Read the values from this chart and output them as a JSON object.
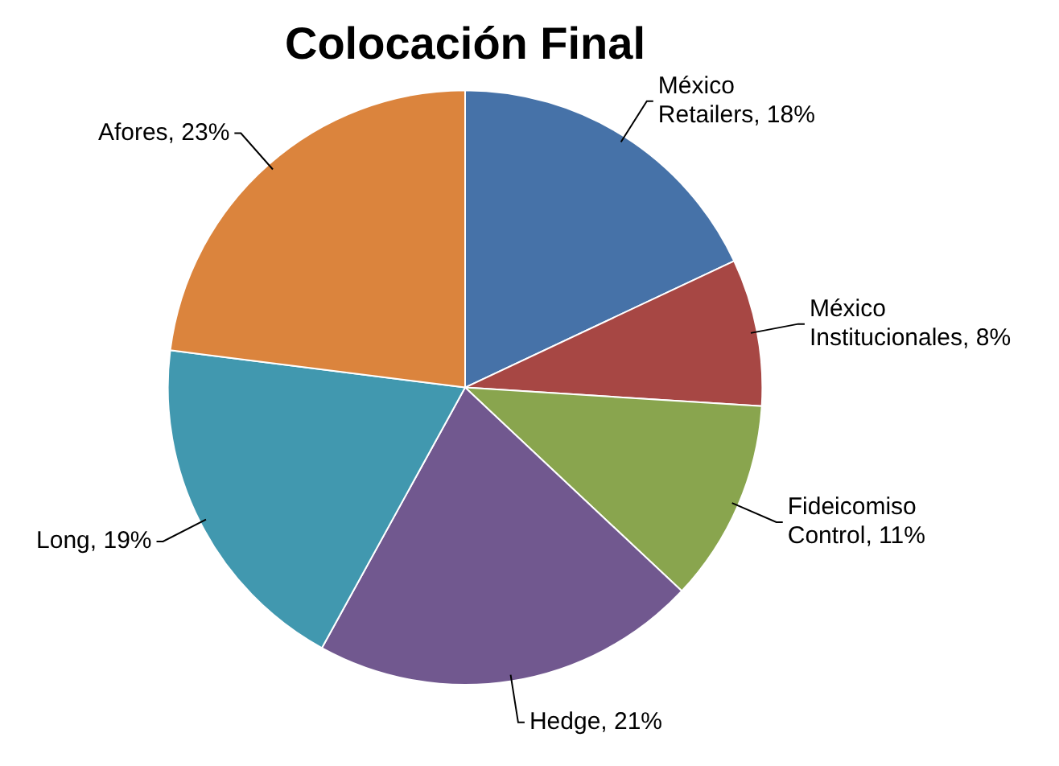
{
  "chart_data": {
    "type": "pie",
    "title": "Colocación Final",
    "categories": [
      "México Retailers",
      "México Institucionales",
      "Fideicomiso Control",
      "Hedge",
      "Long",
      "Afores"
    ],
    "values": [
      18,
      8,
      11,
      21,
      19,
      23
    ],
    "value_labels": [
      "18%",
      "8%",
      "11%",
      "21%",
      "19%",
      "23%"
    ],
    "colors": [
      "#4672a8",
      "#a74744",
      "#89a54e",
      "#71588f",
      "#4198af",
      "#db843d"
    ],
    "legend": false
  }
}
